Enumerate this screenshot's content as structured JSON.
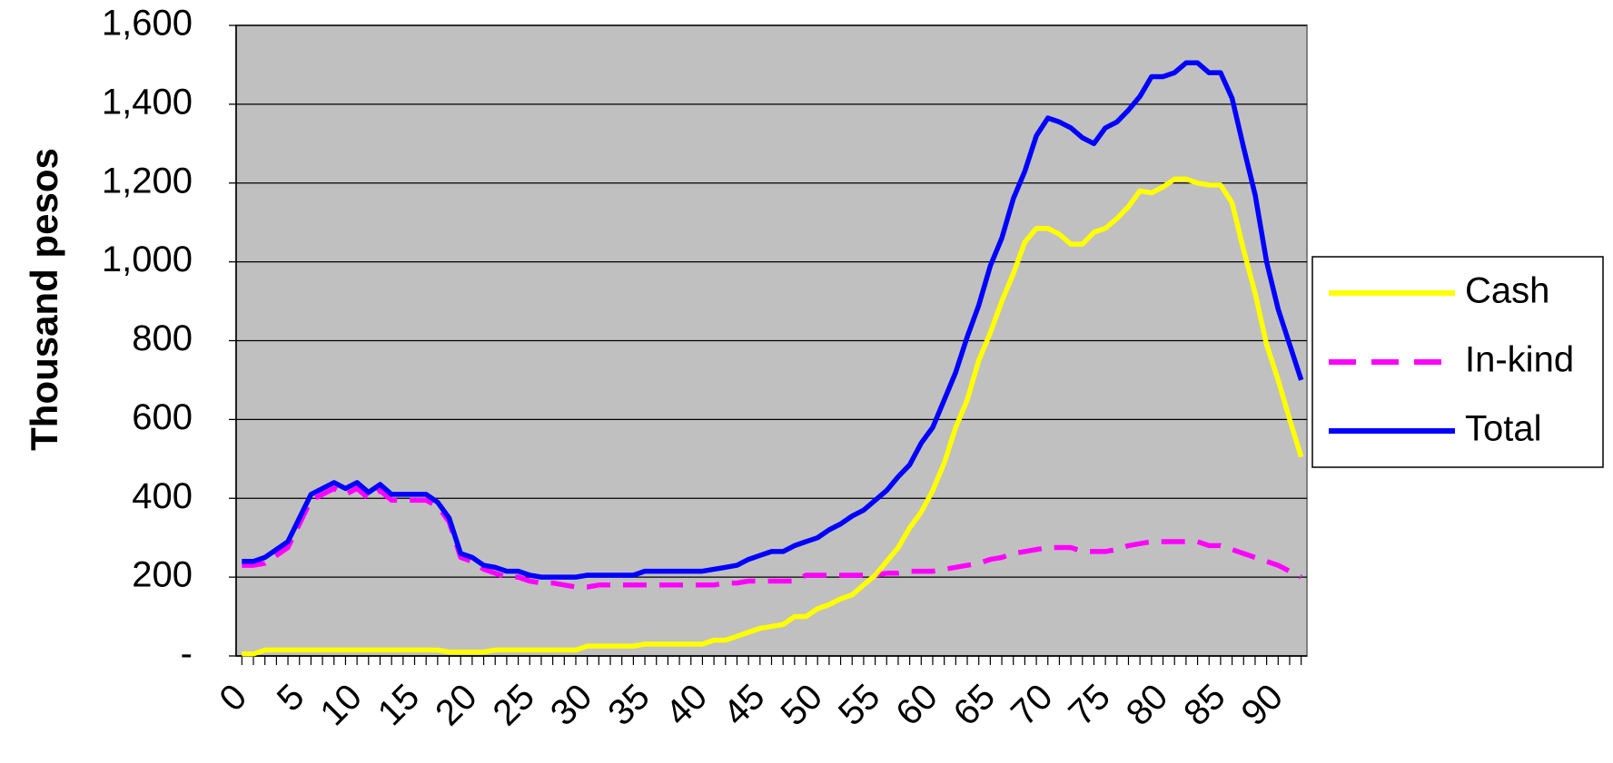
{
  "chart_data": {
    "type": "line",
    "y_label": "Thousand pesos",
    "x": [
      0,
      1,
      2,
      3,
      4,
      5,
      6,
      7,
      8,
      9,
      10,
      11,
      12,
      13,
      14,
      15,
      16,
      17,
      18,
      19,
      20,
      21,
      22,
      23,
      24,
      25,
      26,
      27,
      28,
      29,
      30,
      31,
      32,
      33,
      34,
      35,
      36,
      37,
      38,
      39,
      40,
      41,
      42,
      43,
      44,
      45,
      46,
      47,
      48,
      49,
      50,
      51,
      52,
      53,
      54,
      55,
      56,
      57,
      58,
      59,
      60,
      61,
      62,
      63,
      64,
      65,
      66,
      67,
      68,
      69,
      70,
      71,
      72,
      73,
      74,
      75,
      76,
      77,
      78,
      79,
      80,
      81,
      82,
      83,
      84,
      85,
      86,
      87,
      88,
      89,
      90,
      91,
      92
    ],
    "xlim": [
      -0.5,
      92.5
    ],
    "xticks": [
      0,
      5,
      10,
      15,
      20,
      25,
      30,
      35,
      40,
      45,
      50,
      55,
      60,
      65,
      70,
      75,
      80,
      85,
      90
    ],
    "ylim": [
      0,
      1600
    ],
    "yticks": [
      {
        "value": 0,
        "label": "-"
      },
      200,
      400,
      600,
      800,
      {
        "value": 1000,
        "label": "1,000"
      },
      {
        "value": 1200,
        "label": "1,200"
      },
      {
        "value": 1400,
        "label": "1,400"
      },
      {
        "value": 1600,
        "label": "1,600"
      }
    ],
    "grid": true,
    "legend": "right",
    "series": [
      {
        "name": "Cash",
        "color": "#ffff00",
        "dash": false,
        "values": [
          5,
          5,
          15,
          15,
          15,
          15,
          15,
          15,
          15,
          15,
          15,
          15,
          15,
          15,
          15,
          15,
          15,
          15,
          10,
          10,
          10,
          10,
          15,
          15,
          15,
          15,
          15,
          15,
          15,
          15,
          25,
          25,
          25,
          25,
          25,
          30,
          30,
          30,
          30,
          30,
          30,
          40,
          40,
          50,
          60,
          70,
          75,
          80,
          100,
          100,
          120,
          130,
          145,
          155,
          180,
          205,
          240,
          275,
          325,
          365,
          420,
          490,
          580,
          650,
          750,
          820,
          900,
          970,
          1050,
          1085,
          1085,
          1070,
          1045,
          1045,
          1075,
          1085,
          1110,
          1140,
          1180,
          1175,
          1190,
          1210,
          1210,
          1200,
          1195,
          1195,
          1150,
          1030,
          920,
          790,
          700,
          600,
          505
        ]
      },
      {
        "name": "In-kind",
        "color": "#ff00ff",
        "dash": true,
        "values": [
          230,
          230,
          235,
          255,
          275,
          335,
          395,
          410,
          425,
          410,
          425,
          400,
          420,
          395,
          395,
          395,
          395,
          380,
          340,
          250,
          240,
          220,
          210,
          200,
          200,
          190,
          185,
          185,
          180,
          175,
          175,
          180,
          180,
          180,
          180,
          180,
          180,
          180,
          180,
          180,
          180,
          180,
          185,
          185,
          190,
          190,
          190,
          190,
          190,
          205,
          205,
          205,
          205,
          205,
          205,
          205,
          210,
          210,
          215,
          215,
          215,
          220,
          225,
          230,
          235,
          245,
          250,
          260,
          265,
          270,
          275,
          275,
          275,
          265,
          265,
          265,
          270,
          280,
          285,
          290,
          290,
          290,
          290,
          290,
          280,
          280,
          270,
          260,
          250,
          240,
          230,
          215,
          200
        ]
      },
      {
        "name": "Total",
        "color": "#0000ff",
        "dash": false,
        "values": [
          240,
          240,
          250,
          270,
          290,
          350,
          410,
          425,
          440,
          425,
          440,
          415,
          435,
          410,
          410,
          410,
          410,
          390,
          350,
          260,
          250,
          230,
          225,
          215,
          215,
          205,
          200,
          200,
          200,
          200,
          205,
          205,
          205,
          205,
          205,
          215,
          215,
          215,
          215,
          215,
          215,
          220,
          225,
          230,
          245,
          255,
          265,
          265,
          280,
          290,
          300,
          320,
          335,
          355,
          370,
          395,
          420,
          455,
          485,
          540,
          580,
          650,
          720,
          810,
          890,
          990,
          1060,
          1160,
          1230,
          1320,
          1365,
          1355,
          1340,
          1315,
          1300,
          1340,
          1355,
          1385,
          1420,
          1470,
          1470,
          1480,
          1505,
          1505,
          1480,
          1480,
          1415,
          1290,
          1170,
          1000,
          880,
          790,
          700
        ]
      }
    ]
  }
}
